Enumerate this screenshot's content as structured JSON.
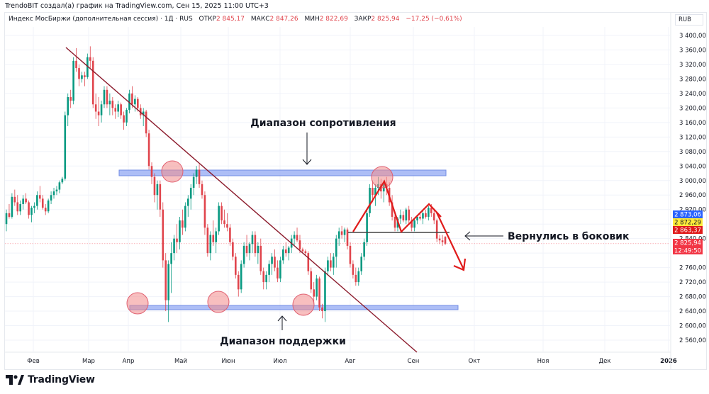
{
  "credit": "TrendoBIT создал(а) график на TradingView.com, Сен 15, 2025 11:00 UTC+3",
  "legend": {
    "symbol": "Индекс МосБиржи (дополнительная сессия) · 1Д · RUS",
    "open_label": "ОТКР",
    "open": "2 845,17",
    "high_label": "МАКС",
    "high": "2 847,26",
    "low_label": "МИН",
    "low": "2 822,69",
    "close_label": "ЗАКР",
    "close": "2 825,94",
    "change": "−17,25 (−0,61%)"
  },
  "currency": "RUB",
  "price_axis": {
    "ticks": [
      "3 400,00",
      "3 360,00",
      "3 320,00",
      "3 280,00",
      "3 240,00",
      "3 200,00",
      "3 160,00",
      "3 120,00",
      "3 080,00",
      "3 040,00",
      "3 000,00",
      "2 960,00",
      "2 920,00",
      "2 880,00",
      "2 840,00",
      "2 800,00",
      "2 760,00",
      "2 720,00",
      "2 680,00",
      "2 640,00",
      "2 600,00",
      "2 560,00"
    ],
    "badges": [
      {
        "value": "2 873,06",
        "bg": "#2962ff",
        "fg": "#ffffff"
      },
      {
        "value": "2 872,29",
        "bg": "#ffeb3b",
        "fg": "#131722"
      },
      {
        "value": "2 863,37",
        "bg": "#e01b1b",
        "fg": "#ffffff"
      },
      {
        "value": "2 825,94",
        "bg": "#f23645",
        "fg": "#ffffff"
      },
      {
        "value": "12:49:50",
        "bg": "#f23645",
        "fg": "#ffffff"
      }
    ]
  },
  "time_axis": [
    "Фев",
    "Мар",
    "Апр",
    "Май",
    "Июн",
    "Июл",
    "Авг",
    "Сен",
    "Окт",
    "Ноя",
    "Дек",
    "2026"
  ],
  "annotations": {
    "resistance": "Диапазон сопротивления",
    "support": "Диапазон поддержки",
    "sideways": "Вернулись в боковик"
  },
  "brand": "TradingView",
  "colors": {
    "up": "#089981",
    "down": "#e0444c",
    "zone": "#9fb3f5",
    "zone_border": "#5b7be0",
    "trend": "#8b1a2b",
    "pattern": "#e01b1b",
    "circle": "#f28a8a"
  },
  "chart_data": {
    "type": "candlestick",
    "title": "Индекс МосБиржи (дополнительная сессия) · 1Д · RUS",
    "xlabel": "",
    "ylabel": "RUB",
    "ylim": [
      2540,
      3420
    ],
    "x_ticks": [
      "Фев",
      "Мар",
      "Апр",
      "Май",
      "Июн",
      "Июл",
      "Авг",
      "Сен",
      "Окт",
      "Ноя",
      "Дек",
      "2026"
    ],
    "levels": {
      "resistance_zone": [
        3015,
        3025
      ],
      "support_zone": [
        2648,
        2658
      ],
      "neckline": 2870,
      "last_close": 2825.94
    },
    "trendline": {
      "from": {
        "date": "late Feb",
        "price": 3370
      },
      "to": {
        "date": "mid Sep",
        "price": 2560
      }
    },
    "touches": {
      "resistance": [
        "late Apr ~3030",
        "mid Aug ~3005"
      ],
      "support": [
        "early Apr ~2665",
        "late May ~2670",
        "mid Jul ~2660"
      ]
    },
    "ohlc": [
      [
        2880,
        2920,
        2860,
        2910
      ],
      [
        2910,
        2935,
        2895,
        2900
      ],
      [
        2900,
        2965,
        2895,
        2955
      ],
      [
        2955,
        2975,
        2930,
        2940
      ],
      [
        2940,
        2960,
        2905,
        2915
      ],
      [
        2915,
        2945,
        2905,
        2935
      ],
      [
        2935,
        2960,
        2920,
        2950
      ],
      [
        2950,
        2965,
        2935,
        2940
      ],
      [
        2940,
        2945,
        2895,
        2905
      ],
      [
        2905,
        2930,
        2885,
        2925
      ],
      [
        2925,
        2940,
        2910,
        2930
      ],
      [
        2930,
        2970,
        2920,
        2960
      ],
      [
        2960,
        2985,
        2940,
        2950
      ],
      [
        2950,
        2960,
        2920,
        2925
      ],
      [
        2925,
        2935,
        2905,
        2915
      ],
      [
        2915,
        2950,
        2910,
        2945
      ],
      [
        2945,
        2970,
        2935,
        2960
      ],
      [
        2960,
        2980,
        2950,
        2970
      ],
      [
        2970,
        2985,
        2960,
        2975
      ],
      [
        2975,
        3000,
        2965,
        2995
      ],
      [
        2995,
        3010,
        2990,
        3005
      ],
      [
        3005,
        3190,
        3000,
        3180
      ],
      [
        3180,
        3240,
        3150,
        3230
      ],
      [
        3230,
        3250,
        3200,
        3220
      ],
      [
        3220,
        3340,
        3210,
        3330
      ],
      [
        3330,
        3365,
        3300,
        3310
      ],
      [
        3310,
        3320,
        3260,
        3280
      ],
      [
        3280,
        3300,
        3270,
        3290
      ],
      [
        3290,
        3300,
        3260,
        3285
      ],
      [
        3285,
        3350,
        3280,
        3340
      ],
      [
        3340,
        3370,
        3310,
        3330
      ],
      [
        3330,
        3340,
        3200,
        3210
      ],
      [
        3210,
        3240,
        3170,
        3190
      ],
      [
        3190,
        3230,
        3150,
        3180
      ],
      [
        3180,
        3220,
        3160,
        3210
      ],
      [
        3210,
        3260,
        3200,
        3250
      ],
      [
        3250,
        3260,
        3200,
        3210
      ],
      [
        3210,
        3240,
        3180,
        3220
      ],
      [
        3220,
        3230,
        3180,
        3200
      ],
      [
        3200,
        3210,
        3170,
        3190
      ],
      [
        3190,
        3220,
        3175,
        3210
      ],
      [
        3210,
        3215,
        3170,
        3180
      ],
      [
        3180,
        3190,
        3140,
        3160
      ],
      [
        3160,
        3200,
        3150,
        3195
      ],
      [
        3195,
        3250,
        3185,
        3240
      ],
      [
        3240,
        3260,
        3200,
        3210
      ],
      [
        3210,
        3235,
        3190,
        3225
      ],
      [
        3225,
        3230,
        3190,
        3200
      ],
      [
        3200,
        3210,
        3170,
        3180
      ],
      [
        3180,
        3200,
        3150,
        3190
      ],
      [
        3190,
        3195,
        3120,
        3130
      ],
      [
        3130,
        3140,
        3030,
        3040
      ],
      [
        3040,
        3050,
        2990,
        3010
      ],
      [
        3010,
        3020,
        2940,
        2960
      ],
      [
        2960,
        3000,
        2920,
        2990
      ],
      [
        2990,
        3000,
        2900,
        2920
      ],
      [
        2920,
        2940,
        2760,
        2780
      ],
      [
        2780,
        2800,
        2640,
        2670
      ],
      [
        2670,
        2780,
        2610,
        2770
      ],
      [
        2770,
        2830,
        2690,
        2800
      ],
      [
        2800,
        2850,
        2780,
        2840
      ],
      [
        2840,
        2880,
        2800,
        2830
      ],
      [
        2830,
        2900,
        2810,
        2890
      ],
      [
        2890,
        2920,
        2850,
        2870
      ],
      [
        2870,
        2940,
        2860,
        2930
      ],
      [
        2930,
        2960,
        2900,
        2950
      ],
      [
        2950,
        2990,
        2920,
        2980
      ],
      [
        2980,
        3020,
        2960,
        3010
      ],
      [
        3010,
        3040,
        2990,
        3030
      ],
      [
        3030,
        3045,
        2980,
        2990
      ],
      [
        2990,
        3000,
        2950,
        2960
      ],
      [
        2960,
        2970,
        2850,
        2870
      ],
      [
        2870,
        2880,
        2790,
        2800
      ],
      [
        2800,
        2860,
        2780,
        2850
      ],
      [
        2850,
        2890,
        2820,
        2830
      ],
      [
        2830,
        2870,
        2800,
        2860
      ],
      [
        2860,
        2940,
        2850,
        2930
      ],
      [
        2930,
        2940,
        2880,
        2890
      ],
      [
        2890,
        2920,
        2870,
        2880
      ],
      [
        2880,
        2910,
        2860,
        2870
      ],
      [
        2870,
        2880,
        2820,
        2830
      ],
      [
        2830,
        2840,
        2780,
        2790
      ],
      [
        2790,
        2800,
        2730,
        2740
      ],
      [
        2740,
        2750,
        2680,
        2700
      ],
      [
        2700,
        2780,
        2690,
        2770
      ],
      [
        2770,
        2830,
        2760,
        2820
      ],
      [
        2820,
        2850,
        2790,
        2800
      ],
      [
        2800,
        2830,
        2780,
        2825
      ],
      [
        2825,
        2860,
        2800,
        2850
      ],
      [
        2850,
        2860,
        2790,
        2800
      ],
      [
        2800,
        2830,
        2770,
        2820
      ],
      [
        2820,
        2840,
        2740,
        2750
      ],
      [
        2750,
        2760,
        2700,
        2720
      ],
      [
        2720,
        2750,
        2700,
        2740
      ],
      [
        2740,
        2780,
        2720,
        2770
      ],
      [
        2770,
        2800,
        2740,
        2790
      ],
      [
        2790,
        2810,
        2750,
        2760
      ],
      [
        2760,
        2780,
        2720,
        2730
      ],
      [
        2730,
        2790,
        2720,
        2780
      ],
      [
        2780,
        2820,
        2770,
        2810
      ],
      [
        2810,
        2830,
        2790,
        2800
      ],
      [
        2800,
        2820,
        2780,
        2815
      ],
      [
        2815,
        2850,
        2800,
        2840
      ],
      [
        2840,
        2860,
        2820,
        2850
      ],
      [
        2850,
        2870,
        2830,
        2835
      ],
      [
        2835,
        2850,
        2800,
        2810
      ],
      [
        2810,
        2815,
        2800,
        2805
      ],
      [
        2805,
        2810,
        2795,
        2800
      ],
      [
        2800,
        2805,
        2740,
        2750
      ],
      [
        2750,
        2760,
        2690,
        2700
      ],
      [
        2700,
        2720,
        2660,
        2680
      ],
      [
        2680,
        2740,
        2670,
        2730
      ],
      [
        2730,
        2735,
        2640,
        2650
      ],
      [
        2650,
        2660,
        2620,
        2640
      ],
      [
        2640,
        2760,
        2610,
        2750
      ],
      [
        2750,
        2790,
        2740,
        2780
      ],
      [
        2780,
        2800,
        2750,
        2760
      ],
      [
        2760,
        2800,
        2740,
        2790
      ],
      [
        2790,
        2850,
        2760,
        2840
      ],
      [
        2840,
        2870,
        2820,
        2860
      ],
      [
        2860,
        2875,
        2840,
        2850
      ],
      [
        2850,
        2870,
        2830,
        2865
      ],
      [
        2865,
        2870,
        2810,
        2820
      ],
      [
        2820,
        2830,
        2760,
        2770
      ],
      [
        2770,
        2780,
        2730,
        2740
      ],
      [
        2740,
        2760,
        2710,
        2720
      ],
      [
        2720,
        2760,
        2710,
        2750
      ],
      [
        2750,
        2800,
        2740,
        2790
      ],
      [
        2790,
        2840,
        2780,
        2830
      ],
      [
        2830,
        2920,
        2820,
        2910
      ],
      [
        2910,
        2990,
        2900,
        2980
      ],
      [
        2980,
        3000,
        2940,
        2960
      ],
      [
        2960,
        2990,
        2930,
        2980
      ],
      [
        2980,
        3010,
        2960,
        2990
      ],
      [
        2990,
        3005,
        2950,
        2970
      ],
      [
        2970,
        3000,
        2940,
        2990
      ],
      [
        2990,
        3010,
        2960,
        2980
      ],
      [
        2980,
        2995,
        2930,
        2940
      ],
      [
        2940,
        2960,
        2890,
        2900
      ],
      [
        2900,
        2910,
        2860,
        2870
      ],
      [
        2870,
        2900,
        2860,
        2895
      ],
      [
        2895,
        2920,
        2880,
        2905
      ],
      [
        2905,
        2915,
        2885,
        2890
      ],
      [
        2890,
        2925,
        2880,
        2920
      ],
      [
        2920,
        2930,
        2880,
        2890
      ],
      [
        2890,
        2900,
        2860,
        2870
      ],
      [
        2870,
        2895,
        2860,
        2890
      ],
      [
        2890,
        2905,
        2880,
        2900
      ],
      [
        2900,
        2910,
        2890,
        2895
      ],
      [
        2895,
        2915,
        2880,
        2910
      ],
      [
        2910,
        2920,
        2895,
        2900
      ],
      [
        2900,
        2930,
        2890,
        2925
      ],
      [
        2925,
        2935,
        2900,
        2910
      ],
      [
        2910,
        2920,
        2880,
        2890
      ],
      [
        2890,
        2895,
        2830,
        2840
      ],
      [
        2840,
        2850,
        2825,
        2835
      ],
      [
        2835,
        2850,
        2820,
        2830
      ],
      [
        2845,
        2847,
        2822,
        2826
      ]
    ]
  }
}
